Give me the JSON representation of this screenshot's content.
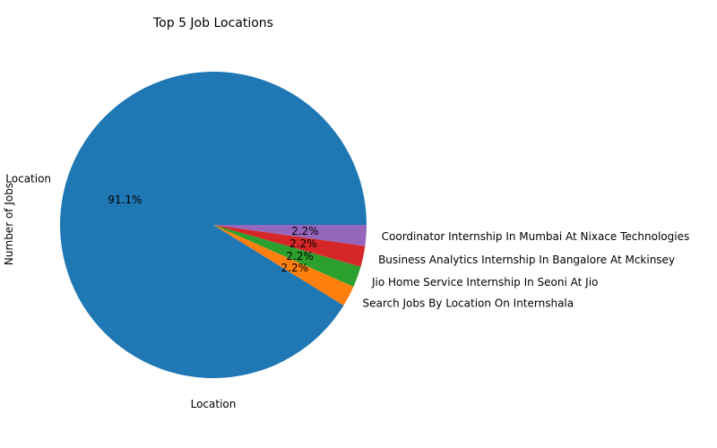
{
  "chart_data": {
    "type": "pie",
    "title": "Top 5 Job Locations",
    "xlabel": "Location",
    "ylabel": "Number of Jobs",
    "categories": [
      "Location",
      "Search Jobs By Location On Internshala",
      "Jio Home Service Internship In Seoni At Jio",
      "Business Analytics Internship In Bangalore At Mckinsey",
      "Coordinator Internship In Mumbai At Nixace Technologies"
    ],
    "values": [
      91.1,
      2.2,
      2.2,
      2.2,
      2.2
    ],
    "percent_labels": [
      "91.1%",
      "2.2%",
      "2.2%",
      "2.2%",
      "2.2%"
    ],
    "colors": [
      "#1f77b4",
      "#ff7f0e",
      "#2ca02c",
      "#d62728",
      "#9467bd"
    ]
  }
}
